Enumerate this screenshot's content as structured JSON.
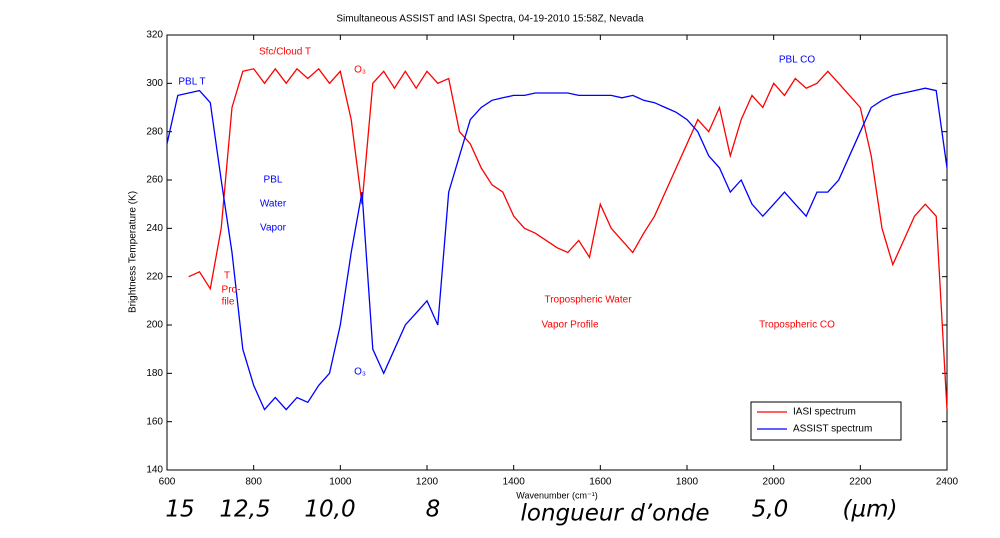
{
  "chart_data": {
    "type": "line",
    "title": "Simultaneous ASSIST and IASI Spectra, 04-19-2010 15:58Z, Nevada",
    "x_label": "Wavenumber (cm⁻¹)",
    "y_label": "Brightness Temperature (K)",
    "xlim": [
      600,
      2400
    ],
    "xticks": [
      600,
      800,
      1000,
      1200,
      1400,
      1600,
      1800,
      2000,
      2200,
      2400
    ],
    "ylim": [
      140,
      320
    ],
    "yticks": [
      140,
      160,
      180,
      200,
      220,
      240,
      260,
      280,
      300,
      320
    ],
    "grid": false,
    "legend": "lower right",
    "x": [
      600,
      625,
      650,
      675,
      700,
      725,
      750,
      775,
      800,
      825,
      850,
      875,
      900,
      925,
      950,
      975,
      1000,
      1025,
      1050,
      1075,
      1100,
      1125,
      1150,
      1175,
      1200,
      1225,
      1250,
      1275,
      1300,
      1325,
      1350,
      1375,
      1400,
      1425,
      1450,
      1475,
      1500,
      1525,
      1550,
      1575,
      1600,
      1625,
      1650,
      1675,
      1700,
      1725,
      1750,
      1775,
      1800,
      1825,
      1850,
      1875,
      1900,
      1925,
      1950,
      1975,
      2000,
      2025,
      2050,
      2075,
      2100,
      2125,
      2150,
      2175,
      2200,
      2225,
      2250,
      2275,
      2300,
      2325,
      2350,
      2375,
      2400
    ],
    "series": [
      {
        "name": "IASI spectrum",
        "color": "#ff0000",
        "values": [
          null,
          null,
          220,
          222,
          215,
          240,
          290,
          305,
          306,
          300,
          306,
          300,
          306,
          302,
          306,
          300,
          305,
          285,
          250,
          300,
          305,
          298,
          305,
          298,
          305,
          300,
          302,
          280,
          275,
          265,
          258,
          255,
          245,
          240,
          238,
          235,
          232,
          230,
          235,
          228,
          250,
          240,
          235,
          230,
          238,
          245,
          255,
          265,
          275,
          285,
          280,
          290,
          270,
          285,
          295,
          290,
          300,
          295,
          302,
          298,
          300,
          305,
          300,
          295,
          290,
          270,
          240,
          225,
          235,
          245,
          250,
          245,
          165
        ]
      },
      {
        "name": "ASSIST spectrum",
        "color": "#0000ff",
        "values": [
          275,
          295,
          296,
          297,
          292,
          260,
          230,
          190,
          175,
          165,
          170,
          165,
          170,
          168,
          175,
          180,
          200,
          230,
          255,
          190,
          180,
          190,
          200,
          205,
          210,
          200,
          255,
          270,
          285,
          290,
          293,
          294,
          295,
          295,
          296,
          296,
          296,
          296,
          295,
          295,
          295,
          295,
          294,
          295,
          293,
          292,
          290,
          288,
          285,
          280,
          270,
          265,
          255,
          260,
          250,
          245,
          250,
          255,
          250,
          245,
          255,
          255,
          260,
          270,
          280,
          290,
          293,
          295,
          296,
          297,
          298,
          297,
          265
        ]
      }
    ],
    "annotations": [
      {
        "text": "PBL T",
        "color": "#0000ff"
      },
      {
        "text": "Sfc/Cloud T",
        "color": "#ff0000"
      },
      {
        "text": "O₃",
        "color": "#ff0000"
      },
      {
        "text": "PBL CO",
        "color": "#0000ff"
      },
      {
        "text": "PBL",
        "color": "#0000ff"
      },
      {
        "text": "Water",
        "color": "#0000ff"
      },
      {
        "text": "Vapor",
        "color": "#0000ff"
      },
      {
        "text": "T",
        "color": "#ff0000"
      },
      {
        "text": "Pro-",
        "color": "#ff0000"
      },
      {
        "text": "file",
        "color": "#ff0000"
      },
      {
        "text": "O₃",
        "color": "#0000ff"
      },
      {
        "text": "Tropospheric Water",
        "color": "#ff0000"
      },
      {
        "text": "Vapor Profile",
        "color": "#ff0000"
      },
      {
        "text": "Tropospheric CO",
        "color": "#ff0000"
      }
    ],
    "wavelength_labels": [
      "15",
      "12,5",
      "10,0",
      "8",
      "5,0",
      "(µm)"
    ],
    "wavelength_axis_label": "longueur d’onde"
  }
}
